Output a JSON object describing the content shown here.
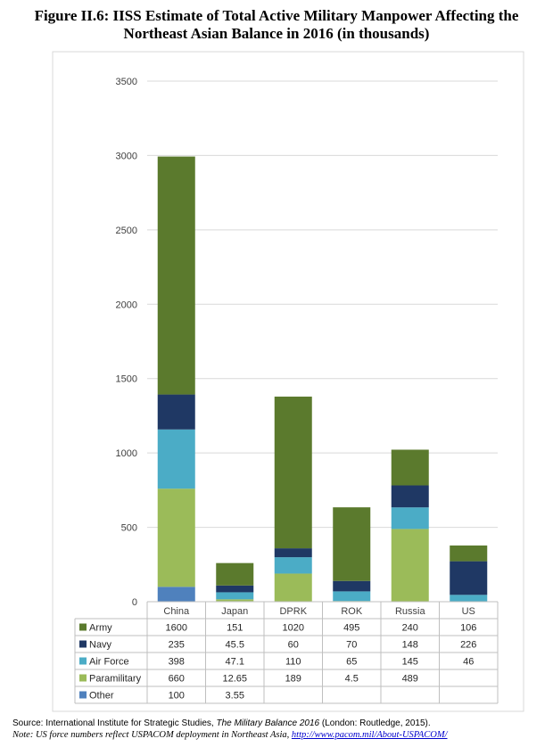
{
  "title_line1": "Figure II.6: IISS Estimate of Total Active Military Manpower Affecting the",
  "title_line2": "Northeast Asian Balance in 2016 (in thousands)",
  "source": {
    "prefix": "Source: International Institute for Strategic Studies, ",
    "book": "The Military Balance 2016",
    "suffix": " (London: Routledge, 2015)."
  },
  "note": {
    "prefix": "Note: US force numbers reflect USPACOM deployment in Northeast Asia, ",
    "link": "http://www.pacom.mil/About-USPACOM/"
  },
  "chart_data": {
    "type": "bar",
    "stacked": true,
    "categories": [
      "China",
      "Japan",
      "DPRK",
      "ROK",
      "Russia",
      "US"
    ],
    "ylim": [
      0,
      3500
    ],
    "yticks": [
      0,
      500,
      1000,
      1500,
      2000,
      2500,
      3000,
      3500
    ],
    "grid": true,
    "legend": "data-table",
    "series": [
      {
        "name": "Other",
        "color": "#4f81bd",
        "values": [
          100,
          3.55,
          null,
          null,
          null,
          null
        ],
        "labels": [
          "100",
          "3.55",
          "",
          "",
          "",
          ""
        ]
      },
      {
        "name": "Paramilitary",
        "color": "#9bbb59",
        "values": [
          660,
          12.65,
          189,
          4.5,
          489,
          null
        ],
        "labels": [
          "660",
          "12.65",
          "189",
          "4.5",
          "489",
          ""
        ]
      },
      {
        "name": "Air Force",
        "color": "#4bacc6",
        "values": [
          398,
          47.1,
          110,
          65,
          145,
          46
        ],
        "labels": [
          "398",
          "47.1",
          "110",
          "65",
          "145",
          "46"
        ]
      },
      {
        "name": "Navy",
        "color": "#1f3864",
        "values": [
          235,
          45.5,
          60,
          70,
          148,
          226
        ],
        "labels": [
          "235",
          "45.5",
          "60",
          "70",
          "148",
          "226"
        ]
      },
      {
        "name": "Army",
        "color": "#5b7a2d",
        "values": [
          1600,
          151,
          1020,
          495,
          240,
          106
        ],
        "labels": [
          "1600",
          "151",
          "1020",
          "495",
          "240",
          "106"
        ]
      }
    ],
    "table_order": [
      "Army",
      "Navy",
      "Air Force",
      "Paramilitary",
      "Other"
    ]
  }
}
